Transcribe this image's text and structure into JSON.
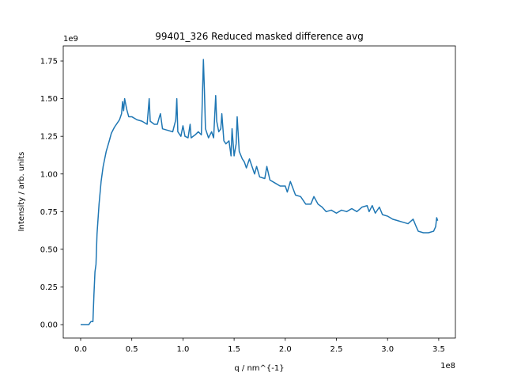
{
  "chart_data": {
    "type": "line",
    "title": "99401_326 Reduced masked difference avg",
    "xlabel": "q / nm^{-1}",
    "ylabel": "Intensity / arb. units",
    "x_offset_label": "1e8",
    "y_offset_label": "1e9",
    "color": "#1f77b4",
    "xlim": [
      -0.17,
      3.663
    ],
    "ylim": [
      -0.089,
      1.85
    ],
    "xticks": [
      {
        "value": 0,
        "label": "0.0"
      },
      0.5,
      {
        "value": 1,
        "label": "1.0"
      },
      1.5,
      {
        "value": 2,
        "label": "2.0"
      },
      2.5,
      {
        "value": 3,
        "label": "3.0"
      },
      3.5
    ],
    "yticks": [
      {
        "value": 0,
        "label": "0.00"
      },
      0.25,
      {
        "value": 0.5,
        "label": "0.50"
      },
      0.75,
      {
        "value": 1,
        "label": "1.00"
      },
      1.25,
      {
        "value": 1.5,
        "label": "1.50"
      },
      1.75
    ],
    "x": [
      0.0,
      0.08,
      0.1,
      0.12,
      0.13,
      0.14,
      0.15,
      0.16,
      0.18,
      0.2,
      0.22,
      0.25,
      0.28,
      0.3,
      0.33,
      0.36,
      0.38,
      0.4,
      0.41,
      0.42,
      0.43,
      0.45,
      0.47,
      0.5,
      0.55,
      0.6,
      0.65,
      0.67,
      0.68,
      0.72,
      0.75,
      0.77,
      0.78,
      0.8,
      0.85,
      0.9,
      0.93,
      0.94,
      0.95,
      0.98,
      1.0,
      1.02,
      1.05,
      1.07,
      1.08,
      1.12,
      1.15,
      1.18,
      1.2,
      1.21,
      1.22,
      1.25,
      1.28,
      1.3,
      1.32,
      1.33,
      1.35,
      1.37,
      1.38,
      1.4,
      1.42,
      1.45,
      1.47,
      1.48,
      1.5,
      1.52,
      1.53,
      1.55,
      1.58,
      1.6,
      1.62,
      1.65,
      1.68,
      1.7,
      1.72,
      1.75,
      1.8,
      1.82,
      1.85,
      1.9,
      1.95,
      2.0,
      2.02,
      2.05,
      2.1,
      2.15,
      2.2,
      2.25,
      2.28,
      2.32,
      2.36,
      2.4,
      2.45,
      2.5,
      2.55,
      2.6,
      2.65,
      2.7,
      2.75,
      2.8,
      2.82,
      2.85,
      2.88,
      2.92,
      2.95,
      3.0,
      3.05,
      3.1,
      3.15,
      3.2,
      3.25,
      3.28,
      3.3,
      3.35,
      3.4,
      3.45,
      3.47,
      3.48,
      3.49
    ],
    "values": [
      0.0,
      0.0,
      0.02,
      0.02,
      0.2,
      0.35,
      0.4,
      0.6,
      0.8,
      0.95,
      1.05,
      1.15,
      1.22,
      1.27,
      1.31,
      1.34,
      1.36,
      1.4,
      1.48,
      1.42,
      1.5,
      1.43,
      1.38,
      1.38,
      1.36,
      1.35,
      1.33,
      1.5,
      1.35,
      1.33,
      1.33,
      1.38,
      1.4,
      1.3,
      1.29,
      1.28,
      1.36,
      1.5,
      1.28,
      1.25,
      1.32,
      1.25,
      1.24,
      1.33,
      1.24,
      1.26,
      1.28,
      1.26,
      1.76,
      1.55,
      1.3,
      1.24,
      1.28,
      1.24,
      1.52,
      1.35,
      1.28,
      1.3,
      1.4,
      1.22,
      1.2,
      1.22,
      1.12,
      1.3,
      1.12,
      1.2,
      1.38,
      1.15,
      1.1,
      1.08,
      1.04,
      1.1,
      1.04,
      1.0,
      1.05,
      0.98,
      0.97,
      1.05,
      0.96,
      0.94,
      0.92,
      0.92,
      0.88,
      0.95,
      0.86,
      0.85,
      0.8,
      0.8,
      0.85,
      0.8,
      0.78,
      0.75,
      0.76,
      0.74,
      0.76,
      0.75,
      0.77,
      0.75,
      0.78,
      0.79,
      0.75,
      0.79,
      0.74,
      0.78,
      0.73,
      0.72,
      0.7,
      0.69,
      0.68,
      0.67,
      0.7,
      0.65,
      0.62,
      0.61,
      0.61,
      0.62,
      0.65,
      0.71,
      0.69
    ]
  }
}
